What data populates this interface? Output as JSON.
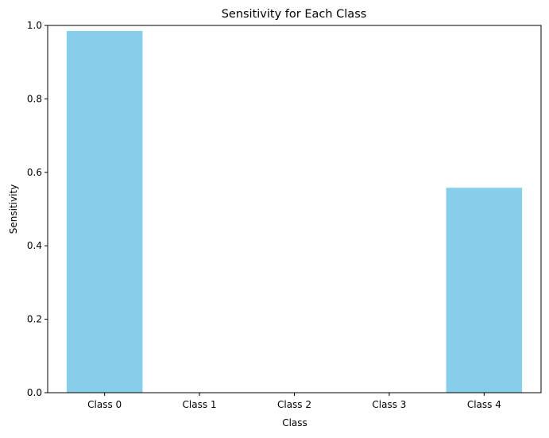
{
  "chart_data": {
    "type": "bar",
    "title": "Sensitivity for Each Class",
    "xlabel": "Class",
    "ylabel": "Sensitivity",
    "categories": [
      "Class 0",
      "Class 1",
      "Class 2",
      "Class 3",
      "Class 4"
    ],
    "values": [
      0.985,
      0.0,
      0.0,
      0.0,
      0.558
    ],
    "ylim": [
      0,
      1.0
    ],
    "yticks": [
      0.0,
      0.2,
      0.4,
      0.6,
      0.8,
      1.0
    ],
    "ytick_labels": [
      "0.0",
      "0.2",
      "0.4",
      "0.6",
      "0.8",
      "1.0"
    ],
    "bar_color": "#87ceeb",
    "grid": false,
    "legend": "none"
  }
}
